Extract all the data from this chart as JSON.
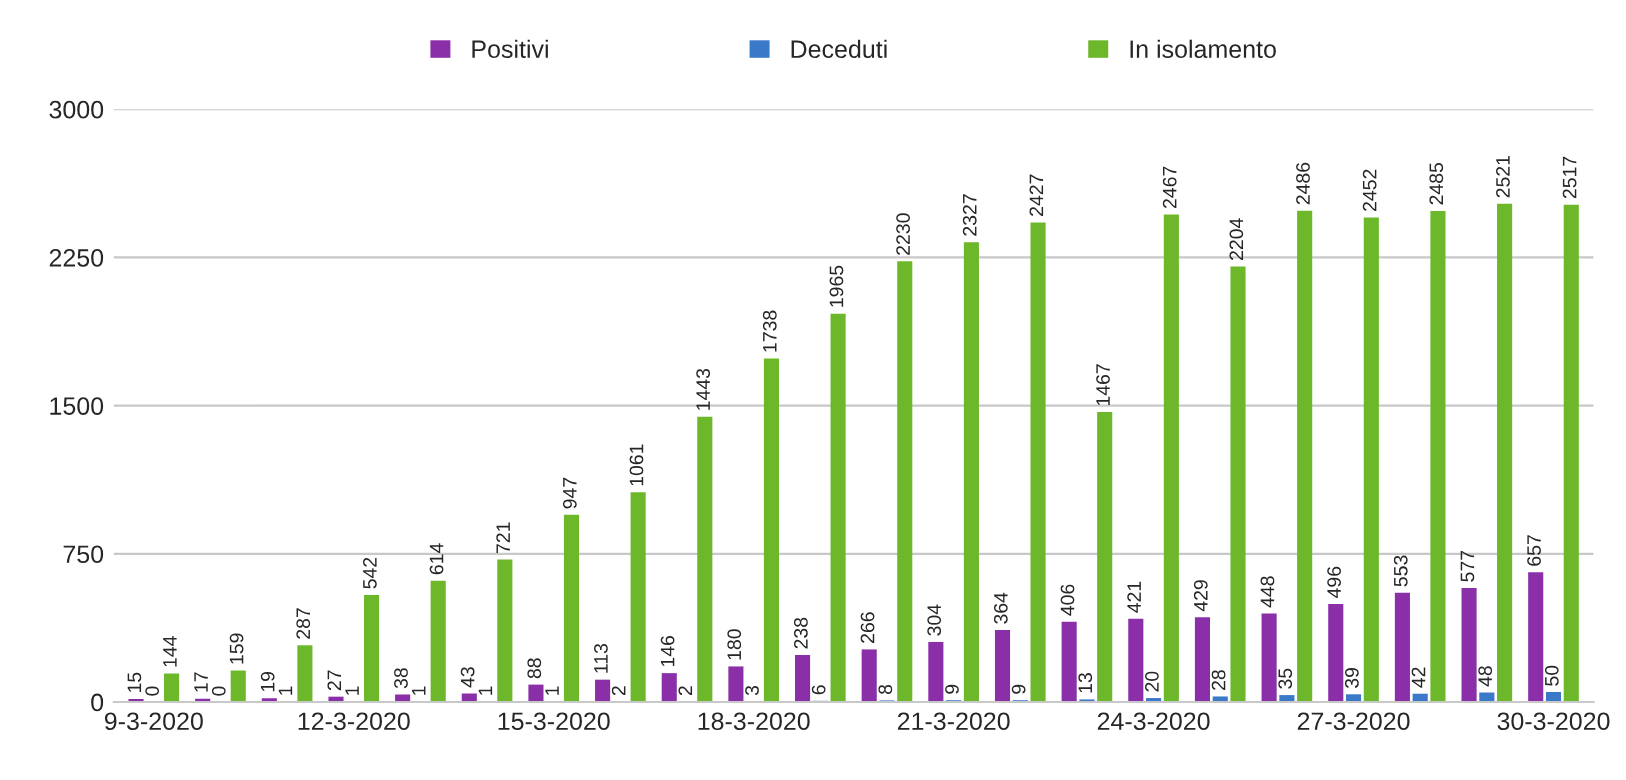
{
  "chart_data": {
    "type": "bar",
    "categories": [
      "9-3-2020",
      null,
      null,
      "12-3-2020",
      null,
      null,
      "15-3-2020",
      null,
      null,
      "18-3-2020",
      null,
      null,
      "21-3-2020",
      null,
      null,
      "24-3-2020",
      null,
      null,
      "27-3-2020",
      null,
      null,
      "30-3-2020"
    ],
    "series": [
      {
        "name": "Positivi",
        "color": "#8b2fa8",
        "values": [
          15,
          17,
          19,
          27,
          38,
          43,
          88,
          113,
          146,
          180,
          238,
          266,
          304,
          364,
          406,
          421,
          429,
          448,
          496,
          553,
          577,
          657
        ]
      },
      {
        "name": "Deceduti",
        "color": "#3a78c8",
        "values": [
          0,
          0,
          1,
          1,
          1,
          1,
          1,
          2,
          2,
          3,
          6,
          8,
          9,
          9,
          13,
          20,
          28,
          35,
          39,
          42,
          48,
          50
        ]
      },
      {
        "name": "In isolamento",
        "color": "#6cb82a",
        "values": [
          144,
          159,
          287,
          542,
          614,
          721,
          947,
          1061,
          1443,
          1738,
          1965,
          2230,
          2327,
          2427,
          1467,
          2467,
          2204,
          2486,
          2452,
          2485,
          2521,
          2517
        ]
      }
    ],
    "ylim": [
      0,
      3000
    ],
    "yticks": [
      0,
      750,
      1500,
      2250,
      3000
    ],
    "grid": "y",
    "legend": "top",
    "data_labels": true
  }
}
